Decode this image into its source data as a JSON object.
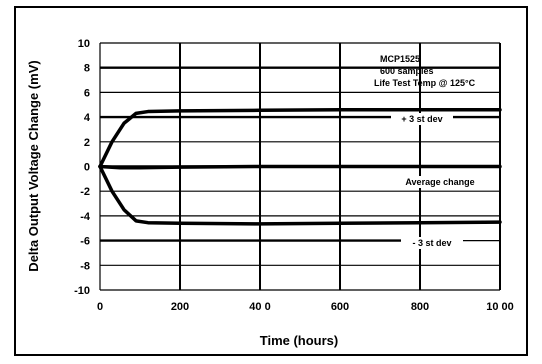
{
  "chart_data": {
    "type": "line",
    "xlabel": "Time (hours)",
    "ylabel": "Delta Output Voltage Change (mV)",
    "xlim": [
      0,
      1000
    ],
    "ylim": [
      -10,
      10
    ],
    "x_ticks": [
      0,
      200,
      400,
      600,
      800,
      1000
    ],
    "x_tick_labels": [
      "0",
      "200",
      "40 0",
      "600",
      "800",
      "10 00"
    ],
    "y_ticks": [
      10,
      8,
      6,
      4,
      2,
      0,
      -2,
      -4,
      -6,
      -8,
      -10
    ],
    "grid": true,
    "annotations": [
      "MCP1525",
      "600 samples",
      "Life Test Temp @ 125°C",
      "+ 3 st dev",
      "Average change",
      "- 3 st dev"
    ],
    "series": [
      {
        "name": "+ 3 st dev",
        "x": [
          0,
          30,
          60,
          90,
          120,
          200,
          400,
          600,
          800,
          1000
        ],
        "y": [
          0,
          2.0,
          3.5,
          4.3,
          4.45,
          4.5,
          4.55,
          4.6,
          4.6,
          4.6
        ]
      },
      {
        "name": "Average change",
        "x": [
          0,
          50,
          100,
          200,
          400,
          600,
          800,
          1000
        ],
        "y": [
          0,
          -0.1,
          -0.1,
          -0.05,
          0,
          0,
          0,
          0
        ]
      },
      {
        "name": "- 3 st dev",
        "x": [
          0,
          30,
          60,
          90,
          120,
          200,
          400,
          600,
          800,
          1000
        ],
        "y": [
          0,
          -2.0,
          -3.5,
          -4.4,
          -4.55,
          -4.6,
          -4.65,
          -4.6,
          -4.55,
          -4.5
        ]
      }
    ]
  }
}
